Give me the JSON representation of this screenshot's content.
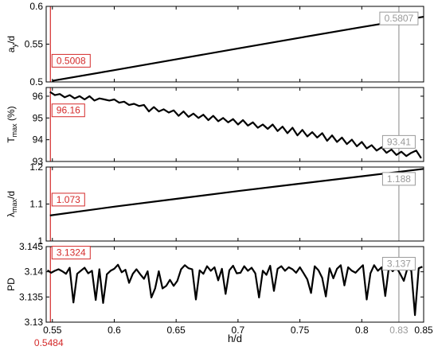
{
  "chart_data": [
    {
      "type": "line",
      "ylabel_main": "a",
      "ylabel_sub": "y",
      "ylabel_tail": "/d",
      "xlim": [
        0.545,
        0.85
      ],
      "ylim": [
        0.5,
        0.6
      ],
      "yticks": [
        "0.5",
        "0.55",
        "0.6"
      ],
      "yticks_v": [
        0.5,
        0.55,
        0.6
      ],
      "series": [
        {
          "x": [
            0.55,
            0.6,
            0.65,
            0.7,
            0.75,
            0.8,
            0.85
          ],
          "y": [
            0.5015,
            0.5156,
            0.5299,
            0.5443,
            0.5585,
            0.5725,
            0.5862
          ]
        }
      ],
      "annot_left": "0.5008",
      "annot_right": "0.5807",
      "annot_left_y": 0.528,
      "annot_right_y": 0.584
    },
    {
      "type": "line",
      "ylabel_main": "T",
      "ylabel_sub": "max",
      "ylabel_tail": " (%)",
      "xlim": [
        0.545,
        0.85
      ],
      "ylim": [
        93,
        96.4
      ],
      "yticks": [
        "93",
        "94",
        "95",
        "96"
      ],
      "yticks_v": [
        93,
        94,
        95,
        96
      ],
      "series": [
        {
          "x": [
            0.548,
            0.552,
            0.556,
            0.56,
            0.564,
            0.568,
            0.572,
            0.576,
            0.58,
            0.584,
            0.588,
            0.592,
            0.596,
            0.6,
            0.604,
            0.608,
            0.612,
            0.616,
            0.62,
            0.624,
            0.628,
            0.632,
            0.636,
            0.64,
            0.644,
            0.648,
            0.652,
            0.656,
            0.66,
            0.664,
            0.668,
            0.672,
            0.676,
            0.68,
            0.684,
            0.688,
            0.692,
            0.696,
            0.7,
            0.704,
            0.708,
            0.712,
            0.716,
            0.72,
            0.724,
            0.728,
            0.732,
            0.736,
            0.74,
            0.744,
            0.748,
            0.752,
            0.756,
            0.76,
            0.764,
            0.768,
            0.772,
            0.776,
            0.78,
            0.784,
            0.788,
            0.792,
            0.796,
            0.8,
            0.804,
            0.808,
            0.812,
            0.816,
            0.82,
            0.824,
            0.828,
            0.832,
            0.836,
            0.84,
            0.844,
            0.848
          ],
          "y": [
            96.2,
            96.05,
            96.1,
            95.95,
            96.05,
            95.9,
            96.0,
            95.85,
            96.0,
            95.8,
            95.9,
            95.85,
            95.8,
            95.85,
            95.7,
            95.75,
            95.6,
            95.65,
            95.55,
            95.6,
            95.3,
            95.5,
            95.3,
            95.4,
            95.25,
            95.35,
            95.1,
            95.3,
            95.05,
            95.2,
            95.0,
            95.15,
            94.9,
            95.1,
            94.85,
            95.0,
            94.8,
            94.95,
            94.7,
            94.9,
            94.65,
            94.8,
            94.55,
            94.7,
            94.5,
            94.7,
            94.4,
            94.6,
            94.3,
            94.55,
            94.2,
            94.45,
            94.15,
            94.35,
            94.1,
            94.3,
            93.95,
            94.2,
            93.9,
            94.1,
            93.8,
            94.0,
            93.7,
            93.9,
            93.6,
            93.75,
            93.5,
            93.65,
            93.4,
            93.55,
            93.3,
            93.45,
            93.25,
            93.4,
            93.5,
            93.15
          ]
        }
      ],
      "annot_left": "96.16",
      "annot_right": "93.41",
      "annot_left_y": 95.35,
      "annot_right_y": 93.9
    },
    {
      "type": "line",
      "ylabel_main": "λ",
      "ylabel_sub": "max",
      "ylabel_tail": "/d",
      "xlim": [
        0.545,
        0.85
      ],
      "ylim": [
        1.0,
        1.2
      ],
      "yticks": [
        "1",
        "1.1",
        "1.2"
      ],
      "yticks_v": [
        1.0,
        1.1,
        1.2
      ],
      "series": [
        {
          "x": [
            0.548,
            0.6,
            0.65,
            0.7,
            0.75,
            0.8,
            0.85
          ],
          "y": [
            1.069,
            1.093,
            1.114,
            1.135,
            1.155,
            1.175,
            1.195
          ]
        }
      ],
      "annot_left": "1.073",
      "annot_right": "1.188",
      "annot_left_y": 1.112,
      "annot_right_y": 1.168
    },
    {
      "type": "line",
      "ylabel_main": "PD",
      "ylabel_sub": "",
      "ylabel_tail": "",
      "xlim": [
        0.545,
        0.85
      ],
      "ylim": [
        3.13,
        3.145
      ],
      "yticks": [
        "3.13",
        "3.135",
        "3.14",
        "3.145"
      ],
      "yticks_v": [
        3.13,
        3.135,
        3.14,
        3.145
      ],
      "xticks": [
        "0.55",
        "0.6",
        "0.65",
        "0.7",
        "0.75",
        "0.8",
        "0.85"
      ],
      "xticks_v": [
        0.55,
        0.6,
        0.65,
        0.7,
        0.75,
        0.8,
        0.85
      ],
      "xlabel": "h/d",
      "series": [
        {
          "x": [
            0.546,
            0.549,
            0.552,
            0.555,
            0.558,
            0.561,
            0.564,
            0.567,
            0.57,
            0.573,
            0.576,
            0.579,
            0.582,
            0.585,
            0.588,
            0.591,
            0.594,
            0.597,
            0.6,
            0.603,
            0.606,
            0.609,
            0.612,
            0.615,
            0.618,
            0.621,
            0.624,
            0.627,
            0.63,
            0.633,
            0.636,
            0.639,
            0.642,
            0.645,
            0.648,
            0.651,
            0.654,
            0.657,
            0.66,
            0.663,
            0.666,
            0.669,
            0.672,
            0.675,
            0.678,
            0.681,
            0.684,
            0.687,
            0.69,
            0.693,
            0.696,
            0.699,
            0.702,
            0.705,
            0.708,
            0.711,
            0.714,
            0.717,
            0.72,
            0.723,
            0.726,
            0.729,
            0.732,
            0.735,
            0.738,
            0.741,
            0.744,
            0.747,
            0.75,
            0.753,
            0.756,
            0.759,
            0.762,
            0.765,
            0.768,
            0.771,
            0.774,
            0.777,
            0.78,
            0.783,
            0.786,
            0.789,
            0.792,
            0.795,
            0.798,
            0.801,
            0.804,
            0.807,
            0.81,
            0.813,
            0.816,
            0.819,
            0.822,
            0.825,
            0.828,
            0.831,
            0.834,
            0.837,
            0.84,
            0.843,
            0.846,
            0.849
          ],
          "y": [
            3.1403,
            3.1398,
            3.1402,
            3.1405,
            3.1401,
            3.1396,
            3.1408,
            3.1339,
            3.1396,
            3.1402,
            3.1408,
            3.1397,
            3.1402,
            3.1344,
            3.1405,
            3.1338,
            3.1395,
            3.1402,
            3.1406,
            3.1414,
            3.1399,
            3.1404,
            3.1378,
            3.1396,
            3.1405,
            3.1395,
            3.1386,
            3.1401,
            3.1349,
            3.1367,
            3.1401,
            3.1367,
            3.1372,
            3.1384,
            3.1372,
            3.1382,
            3.1405,
            3.1413,
            3.1407,
            3.1405,
            3.1345,
            3.1403,
            3.1396,
            3.1411,
            3.1402,
            3.1409,
            3.1383,
            3.1406,
            3.1356,
            3.1403,
            3.1412,
            3.1397,
            3.1398,
            3.1411,
            3.1402,
            3.1408,
            3.1397,
            3.1349,
            3.1402,
            3.1394,
            3.1412,
            3.1362,
            3.1406,
            3.1411,
            3.1402,
            3.1409,
            3.1405,
            3.1398,
            3.1409,
            3.1397,
            3.1385,
            3.1358,
            3.1411,
            3.1403,
            3.1388,
            3.1351,
            3.1407,
            3.1387,
            3.1406,
            3.1413,
            3.1373,
            3.1409,
            3.1402,
            3.1398,
            3.1406,
            3.1413,
            3.1345,
            3.1397,
            3.1413,
            3.1402,
            3.1409,
            3.1352,
            3.1411,
            3.1401,
            3.1409,
            3.1396,
            3.1382,
            3.1408,
            3.1402,
            3.1314,
            3.1407,
            3.141
          ]
        }
      ],
      "annot_left": "3.1324",
      "annot_right": "3.137",
      "annot_left_y": 3.1438,
      "annot_right_y": 3.1416
    }
  ],
  "markers": {
    "left_x": 0.5484,
    "right_x": 0.83,
    "left_label": "0.5484",
    "right_label": "0.83",
    "red": "#d42a2a",
    "gray": "#9a9a9a"
  }
}
